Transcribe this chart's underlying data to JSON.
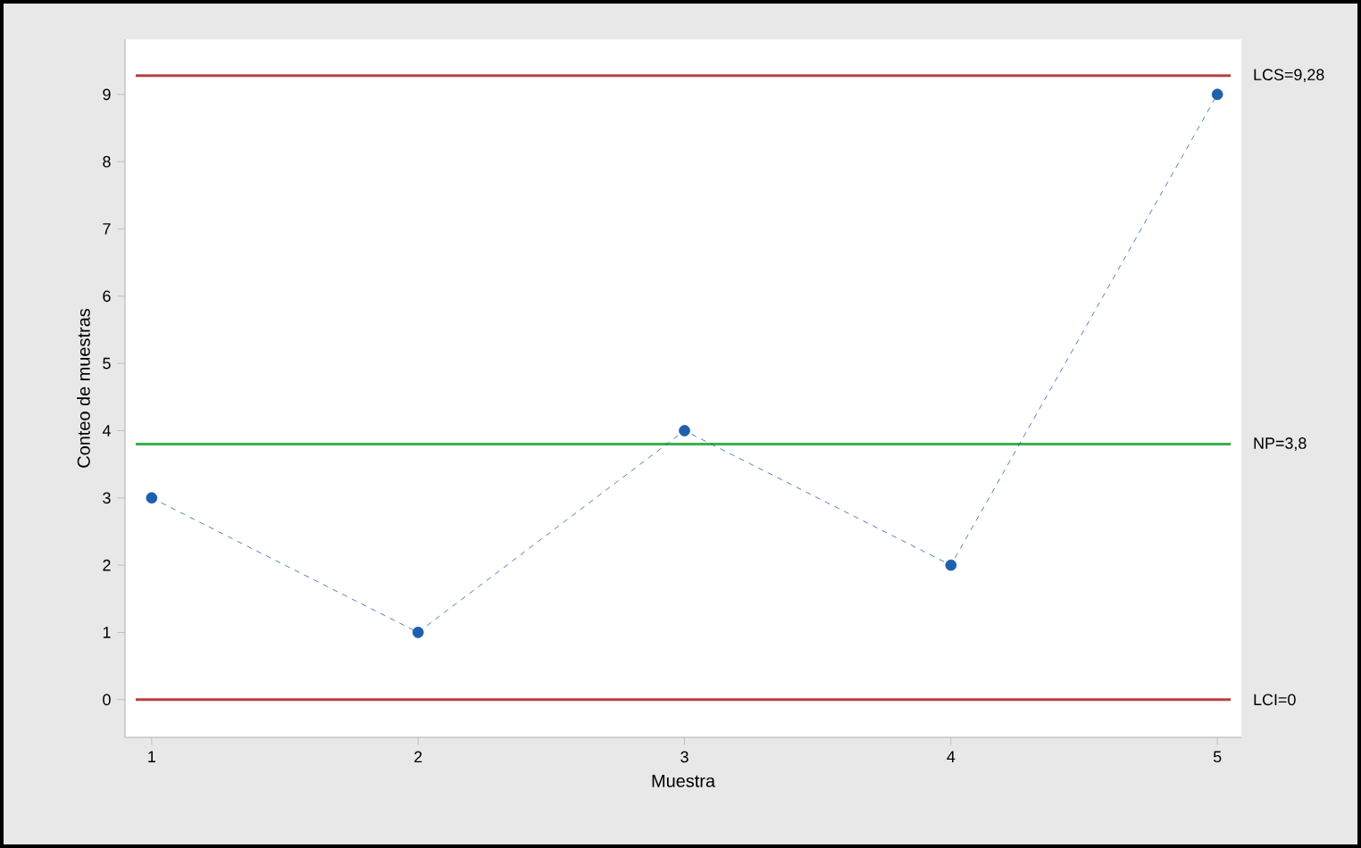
{
  "chart_data": {
    "type": "line",
    "xlabel": "Muestra",
    "ylabel": "Conteo de muestras",
    "x": [
      1,
      2,
      3,
      4,
      5
    ],
    "series": [
      {
        "color": "#1f5fae",
        "values": [
          3,
          1,
          4,
          2,
          9
        ]
      }
    ],
    "xlim": [
      0.9,
      5.09
    ],
    "ylim": [
      -0.56,
      9.82
    ],
    "xticks": [
      1,
      2,
      3,
      4,
      5
    ],
    "yticks": [
      0,
      1,
      2,
      3,
      4,
      5,
      6,
      7,
      8,
      9
    ],
    "marker": "circle",
    "line_style": "dashed",
    "grid": false,
    "ref_lines": [
      {
        "axis": "y",
        "value": 9.28,
        "label": "LCS=9,28",
        "color": "#b84040"
      },
      {
        "axis": "y",
        "value": 3.8,
        "label": "NP=3,8",
        "color": "#3fae49"
      },
      {
        "axis": "y",
        "value": 0,
        "label": "LCI=0",
        "color": "#b84040"
      }
    ]
  }
}
